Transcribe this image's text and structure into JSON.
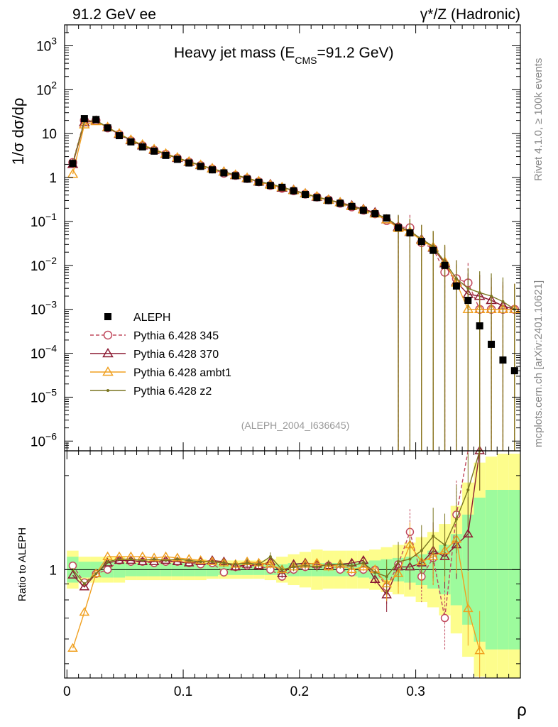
{
  "header": {
    "left": "91.2 GeV ee",
    "right": "γ*/Z (Hadronic)"
  },
  "side": {
    "version": "Rivet 4.1.0, ≥ 100k events",
    "source": "mcplots.cern.ch [arXiv:2401.10621]"
  },
  "chart_data": {
    "type": "line",
    "title": "Heavy jet mass (E_CMS=91.2 GeV)",
    "title_parts": {
      "main": "Heavy jet mass (E",
      "sub": "CMS",
      "rest": "=91.2 GeV)"
    },
    "ylabel": "1/σ dσ/dρ",
    "xlabel": "ρ",
    "ratio_ylabel": "Ratio to ALEPH",
    "watermark": "(ALEPH_2004_I636645)",
    "xlim": [
      -0.002,
      0.39
    ],
    "ylim": [
      6e-07,
      3000
    ],
    "yscale": "log",
    "ratio_ylim": [
      0.45,
      2.4
    ],
    "xticks": [
      0,
      0.1,
      0.2,
      0.3
    ],
    "xtick_labels": [
      "0",
      "0.1",
      "0.2",
      "0.3"
    ],
    "yticks": [
      1e-06,
      1e-05,
      0.0001,
      0.001,
      0.01,
      0.1,
      1,
      10,
      100,
      1000
    ],
    "ytick_labels": [
      {
        "b": "10",
        "e": "−6"
      },
      {
        "b": "10",
        "e": "−5"
      },
      {
        "b": "10",
        "e": "−4"
      },
      {
        "b": "10",
        "e": "−3"
      },
      {
        "b": "10",
        "e": "−2"
      },
      {
        "b": "10",
        "e": "−1"
      },
      {
        "b": "1",
        "e": ""
      },
      {
        "b": "10",
        "e": ""
      },
      {
        "b": "10",
        "e": "2"
      },
      {
        "b": "10",
        "e": "3"
      }
    ],
    "ratio_ytick": 1,
    "ratio_ytick_label": "1",
    "x": [
      0.005,
      0.015,
      0.025,
      0.035,
      0.045,
      0.055,
      0.065,
      0.075,
      0.085,
      0.095,
      0.105,
      0.115,
      0.125,
      0.135,
      0.145,
      0.155,
      0.165,
      0.175,
      0.185,
      0.195,
      0.205,
      0.215,
      0.225,
      0.235,
      0.245,
      0.255,
      0.265,
      0.275,
      0.285,
      0.295,
      0.305,
      0.315,
      0.325,
      0.335,
      0.345,
      0.355,
      0.365,
      0.375,
      0.385
    ],
    "band_x": [
      0.0,
      0.01,
      0.02,
      0.03,
      0.04,
      0.05,
      0.06,
      0.07,
      0.08,
      0.09,
      0.1,
      0.11,
      0.12,
      0.13,
      0.14,
      0.15,
      0.16,
      0.17,
      0.18,
      0.19,
      0.2,
      0.21,
      0.22,
      0.23,
      0.24,
      0.25,
      0.26,
      0.27,
      0.28,
      0.29,
      0.3,
      0.31,
      0.32,
      0.33,
      0.34,
      0.35,
      0.36,
      0.37,
      0.38,
      0.39
    ],
    "data": {
      "name": "ALEPH",
      "values": [
        2.1,
        22,
        21,
        13.5,
        9.0,
        6.5,
        5.0,
        4.0,
        3.2,
        2.6,
        2.15,
        1.8,
        1.5,
        1.28,
        1.1,
        0.92,
        0.78,
        0.66,
        0.6,
        0.5,
        0.41,
        0.35,
        0.3,
        0.26,
        0.22,
        0.18,
        0.15,
        0.12,
        0.072,
        0.055,
        0.035,
        0.022,
        0.01,
        0.0034,
        0.0016,
        0.00042,
        0.00016,
        7e-05,
        4e-05
      ],
      "stat_band": [
        1.1,
        1.06,
        1.06,
        1.06,
        1.06,
        1.05,
        1.05,
        1.05,
        1.05,
        1.05,
        1.05,
        1.05,
        1.05,
        1.04,
        1.04,
        1.04,
        1.04,
        1.04,
        1.04,
        1.05,
        1.05,
        1.05,
        1.05,
        1.05,
        1.05,
        1.06,
        1.07,
        1.08,
        1.09,
        1.1,
        1.12,
        1.15,
        1.2,
        1.3,
        1.5,
        1.7,
        1.8,
        1.8,
        1.8
      ],
      "total_band": [
        1.15,
        1.1,
        1.1,
        1.1,
        1.1,
        1.08,
        1.08,
        1.08,
        1.08,
        1.08,
        1.08,
        1.08,
        1.07,
        1.07,
        1.07,
        1.07,
        1.07,
        1.08,
        1.1,
        1.12,
        1.14,
        1.16,
        1.15,
        1.15,
        1.15,
        1.15,
        1.16,
        1.18,
        1.2,
        1.22,
        1.27,
        1.32,
        1.4,
        1.6,
        1.9,
        2.2,
        2.3,
        2.35,
        2.35
      ]
    },
    "series": [
      {
        "name": "Pythia 6.428 345",
        "color": "#c0485c",
        "marker": "circle",
        "dashed": true,
        "values": [
          2.2,
          20,
          20,
          13.5,
          9.6,
          6.9,
          5.3,
          4.2,
          3.4,
          2.75,
          2.25,
          1.88,
          1.57,
          1.25,
          1.12,
          0.95,
          0.8,
          0.66,
          0.57,
          0.5,
          0.42,
          0.36,
          0.31,
          0.26,
          0.215,
          0.18,
          0.15,
          0.105,
          0.075,
          0.072,
          0.033,
          0.024,
          0.007,
          0.005,
          0.004,
          0.001,
          0.001,
          0.001,
          0.001
        ],
        "ratio": [
          1.03,
          0.91,
          0.97,
          1.0,
          1.07,
          1.06,
          1.06,
          1.05,
          1.06,
          1.06,
          1.05,
          1.04,
          1.05,
          0.98,
          1.02,
          1.03,
          1.03,
          1.0,
          0.95,
          1.0,
          1.02,
          1.03,
          1.03,
          1.0,
          0.98,
          1.0,
          1.0,
          0.88,
          1.04,
          1.32,
          0.95,
          1.09,
          0.7,
          1.5,
          2.5,
          null,
          null,
          null,
          null
        ]
      },
      {
        "name": "Pythia 6.428 370",
        "color": "#8b1a32",
        "marker": "triangle",
        "dashed": false,
        "values": [
          2.0,
          18,
          19.5,
          13.8,
          9.7,
          7.0,
          5.3,
          4.2,
          3.4,
          2.75,
          2.25,
          1.9,
          1.6,
          1.35,
          1.12,
          0.96,
          0.8,
          0.7,
          0.58,
          0.52,
          0.43,
          0.36,
          0.31,
          0.27,
          0.23,
          0.19,
          0.16,
          0.11,
          0.075,
          0.057,
          0.039,
          0.025,
          0.011,
          0.0042,
          0.0022,
          0.002,
          0.0016,
          0.0012,
          0.001
        ],
        "ratio": [
          0.96,
          0.88,
          0.97,
          1.05,
          1.07,
          1.07,
          1.06,
          1.06,
          1.07,
          1.06,
          1.05,
          1.06,
          1.07,
          1.06,
          1.02,
          1.04,
          1.03,
          1.06,
          0.97,
          1.04,
          1.05,
          1.04,
          1.03,
          1.04,
          1.05,
          1.07,
          0.93,
          0.83,
          1.02,
          1.02,
          1.05,
          1.15,
          1.1,
          1.2,
          1.3,
          2.4,
          null,
          null,
          null
        ]
      },
      {
        "name": "Pythia 6.428 ambt1",
        "color": "#f0a020",
        "marker": "triangle",
        "dashed": false,
        "values": [
          1.2,
          16,
          19,
          14.0,
          10.0,
          7.2,
          5.6,
          4.4,
          3.5,
          2.85,
          2.3,
          1.93,
          1.6,
          1.35,
          1.15,
          0.98,
          0.82,
          0.68,
          0.6,
          0.51,
          0.43,
          0.37,
          0.31,
          0.27,
          0.22,
          0.185,
          0.15,
          0.11,
          0.07,
          0.058,
          0.037,
          0.026,
          0.012,
          0.004,
          0.001,
          0.001,
          0.001,
          0.001,
          0.001
        ],
        "ratio": [
          0.56,
          0.73,
          0.97,
          1.1,
          1.1,
          1.1,
          1.1,
          1.09,
          1.1,
          1.09,
          1.08,
          1.07,
          1.06,
          1.05,
          1.04,
          1.06,
          1.05,
          1.04,
          1.0,
          1.02,
          1.04,
          1.05,
          1.02,
          1.04,
          1.0,
          1.02,
          1.0,
          0.9,
          0.97,
          1.2,
          1.06,
          1.1,
          1.15,
          1.25,
          0.75,
          0.55,
          null,
          null,
          null
        ]
      },
      {
        "name": "Pythia 6.428 z2",
        "color": "#7a7520",
        "marker": "dot",
        "dashed": false,
        "values": [
          2.1,
          19,
          20,
          14.0,
          9.8,
          7.1,
          5.4,
          4.3,
          3.4,
          2.8,
          2.3,
          1.9,
          1.58,
          1.35,
          1.14,
          0.97,
          0.81,
          0.72,
          0.6,
          0.51,
          0.42,
          0.36,
          0.31,
          0.265,
          0.22,
          0.185,
          0.15,
          0.12,
          0.078,
          0.06,
          0.04,
          0.027,
          0.012,
          0.005,
          0.003,
          0.0024,
          0.002,
          0.0015,
          0.001
        ],
        "ratio": [
          1.0,
          0.9,
          0.97,
          1.06,
          1.08,
          1.08,
          1.07,
          1.08,
          1.07,
          1.08,
          1.07,
          1.06,
          1.06,
          1.05,
          1.04,
          1.05,
          1.04,
          1.1,
          1.0,
          1.02,
          1.03,
          1.02,
          1.04,
          1.04,
          1.03,
          1.05,
          0.98,
          0.95,
          1.06,
          1.08,
          1.15,
          1.28,
          1.2,
          1.45,
          1.8,
          2.4,
          null,
          null,
          null
        ]
      }
    ]
  }
}
